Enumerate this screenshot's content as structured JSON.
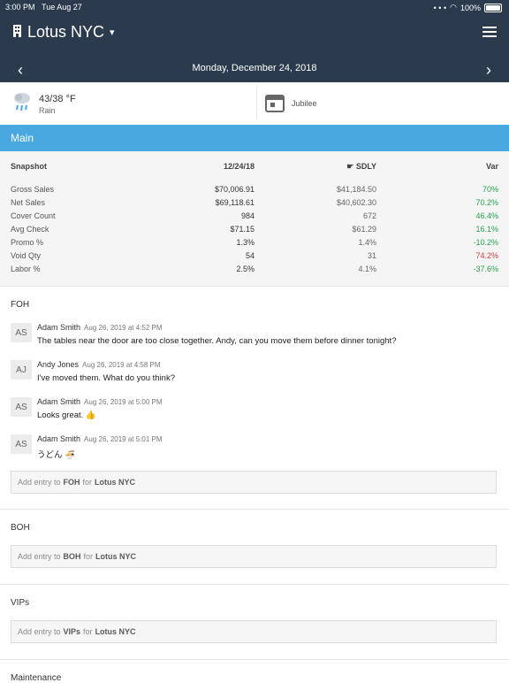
{
  "status": {
    "time": "3:00 PM",
    "date": "Tue Aug 27",
    "battery": "100%"
  },
  "header": {
    "venue": "Lotus NYC",
    "date": "Monday, December 24, 2018"
  },
  "weather": {
    "temp": "43/38 °F",
    "condition": "Rain"
  },
  "event": {
    "name": "Jubilee"
  },
  "main_section": {
    "title": "Main"
  },
  "snapshot": {
    "headers": [
      "Snapshot",
      "12/24/18",
      "SDLY",
      "Var"
    ],
    "rows": [
      [
        "Gross Sales",
        "$70,006.91",
        "$41,184.50",
        "70%"
      ],
      [
        "Net Sales",
        "$69,118.61",
        "$40,602.30",
        "70.2%"
      ],
      [
        "Cover Count",
        "984",
        "672",
        "46.4%"
      ],
      [
        "Avg Check",
        "$71.15",
        "$61.29",
        "16.1%"
      ],
      [
        "Promo %",
        "1.3%",
        "1.4%",
        "-10.2%"
      ],
      [
        "Void Qty",
        "54",
        "31",
        "74.2%"
      ],
      [
        "Labor %",
        "2.5%",
        "4.1%",
        "-37.6%"
      ]
    ]
  },
  "foh": {
    "title": "FOH",
    "messages": [
      {
        "initials": "AS",
        "author": "Adam Smith",
        "time": "Aug 26, 2019 at 4:52 PM",
        "text": "The tables near the door are too close together. Andy, can you move them before dinner tonight?"
      },
      {
        "initials": "AJ",
        "author": "Andy Jones",
        "time": "Aug 26, 2019 at 4:58 PM",
        "text": "I've moved them. What do you think?"
      },
      {
        "initials": "AS",
        "author": "Adam Smith",
        "time": "Aug 26, 2019 at 5:00 PM",
        "text": "Looks great. 👍"
      },
      {
        "initials": "AS",
        "author": "Adam Smith",
        "time": "Aug 26, 2019 at 5:01 PM",
        "text": "うどん 🍜"
      }
    ],
    "add_prefix": "Add entry to",
    "add_target": "FOH",
    "add_mid": "for",
    "add_venue": "Lotus NYC"
  },
  "boh": {
    "title": "BOH",
    "add_prefix": "Add entry to",
    "add_target": "BOH",
    "add_mid": "for",
    "add_venue": "Lotus NYC"
  },
  "vips": {
    "title": "VIPs",
    "add_prefix": "Add entry to",
    "add_target": "VIPs",
    "add_mid": "for",
    "add_venue": "Lotus NYC"
  },
  "maintenance": {
    "title": "Maintenance"
  },
  "colors": {
    "header": "#2b3a4d",
    "section": "#4aa8e0",
    "positive": "#26a34a",
    "negative": "#d53a3a"
  }
}
